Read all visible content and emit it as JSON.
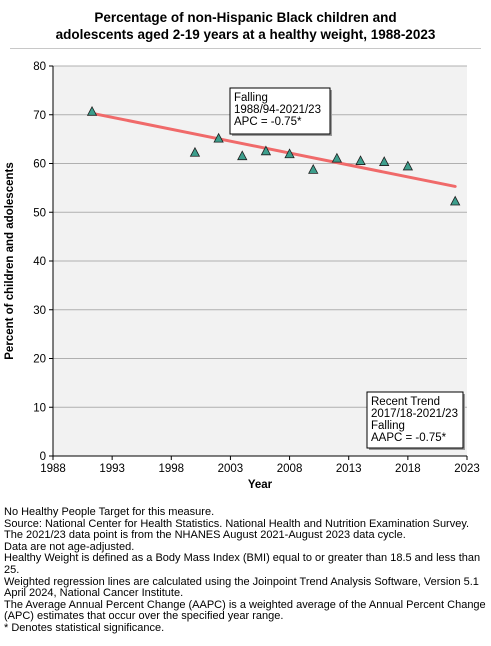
{
  "title_lines": [
    "Percentage of non-Hispanic Black children and",
    "adolescents aged 2-19 years at a healthy weight, 1988-2023"
  ],
  "chart_data": {
    "type": "scatter",
    "title": "Percentage of non-Hispanic Black children and adolescents aged 2-19 years at a healthy weight, 1988-2023",
    "xlabel": "Year",
    "ylabel": "Percent of children and adolescents",
    "xlim": [
      1988,
      2023
    ],
    "ylim": [
      0,
      80
    ],
    "xticks": [
      1988,
      1993,
      1998,
      2003,
      2008,
      2013,
      2018,
      2023
    ],
    "yticks": [
      0,
      10,
      20,
      30,
      40,
      50,
      60,
      70,
      80
    ],
    "grid": true,
    "colors": {
      "trend": "#f06a6a",
      "marker": "#3d9e8c",
      "plot_bg": "#f2f2f2",
      "grid": "#b0b0b0"
    },
    "points": [
      {
        "x": 1991.3,
        "y": 70.6
      },
      {
        "x": 2000.0,
        "y": 62.2
      },
      {
        "x": 2002.0,
        "y": 65.1
      },
      {
        "x": 2004.0,
        "y": 61.5
      },
      {
        "x": 2006.0,
        "y": 62.5
      },
      {
        "x": 2008.0,
        "y": 61.9
      },
      {
        "x": 2010.0,
        "y": 58.7
      },
      {
        "x": 2012.0,
        "y": 61.0
      },
      {
        "x": 2014.0,
        "y": 60.5
      },
      {
        "x": 2016.0,
        "y": 60.3
      },
      {
        "x": 2018.0,
        "y": 59.4
      },
      {
        "x": 2022.0,
        "y": 52.2
      }
    ],
    "trend_line": [
      {
        "x": 1991.3,
        "y": 70.3
      },
      {
        "x": 2022.0,
        "y": 55.3
      }
    ],
    "annotations": [
      {
        "lines": [
          "Falling",
          "1988/94-2021/23",
          "APC = -0.75*"
        ]
      },
      {
        "lines": [
          "Recent Trend",
          "2017/18-2021/23",
          "Falling",
          "AAPC = -0.75*"
        ]
      }
    ]
  },
  "notes": [
    "No Healthy People Target for this measure.",
    "Source: National Center for Health Statistics. National Health and Nutrition Examination Survey.",
    "The 2021/23 data point is from the NHANES August 2021-August 2023 data cycle.",
    "Data are not age-adjusted.",
    "Healthy Weight is defined as a Body Mass Index (BMI) equal to or greater than 18.5 and less than 25.",
    "Weighted regression lines are calculated using the Joinpoint Trend Analysis Software, Version 5.1 April 2024, National Cancer Institute.",
    "The Average Annual Percent Change (AAPC) is a weighted average of the Annual Percent Change (APC) estimates that occur over the specified year range.",
    "* Denotes statistical significance."
  ]
}
